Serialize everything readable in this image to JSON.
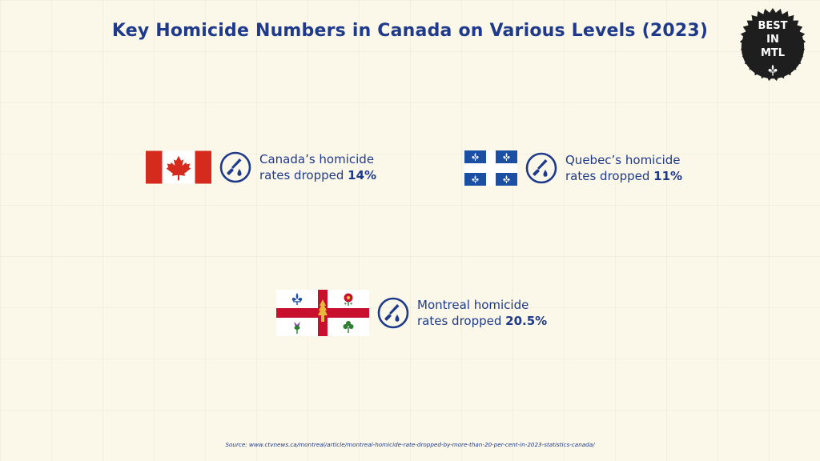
{
  "title": "Key Homicide Numbers in Canada on Various Levels (2023)",
  "badge": {
    "line1": "BEST",
    "line2": "IN",
    "line3": "MTL"
  },
  "stats": [
    {
      "line1": "Canada’s homicide",
      "line2_prefix": "rates dropped ",
      "value": "14%",
      "flag": "canada-flag-icon"
    },
    {
      "line1": "Quebec’s homicide",
      "line2_prefix": "rates dropped ",
      "value": "11%",
      "flag": "quebec-flag-icon"
    },
    {
      "line1": "Montreal homicide",
      "line2_prefix": "rates dropped ",
      "value": "20.5%",
      "flag": "montreal-flag-icon"
    }
  ],
  "icon": "knife-blood-icon",
  "colors": {
    "navy": "#1f3a8a",
    "canada_red": "#d52b1e",
    "quebec_blue": "#1a4fa3",
    "montreal_red": "#c8102e",
    "background": "#fbf8ea"
  },
  "source": "Source: www.ctvnews.ca/montreal/article/montreal-homicide-rate-dropped-by-more-than-20-per-cent-in-2023-statistics-canada/"
}
